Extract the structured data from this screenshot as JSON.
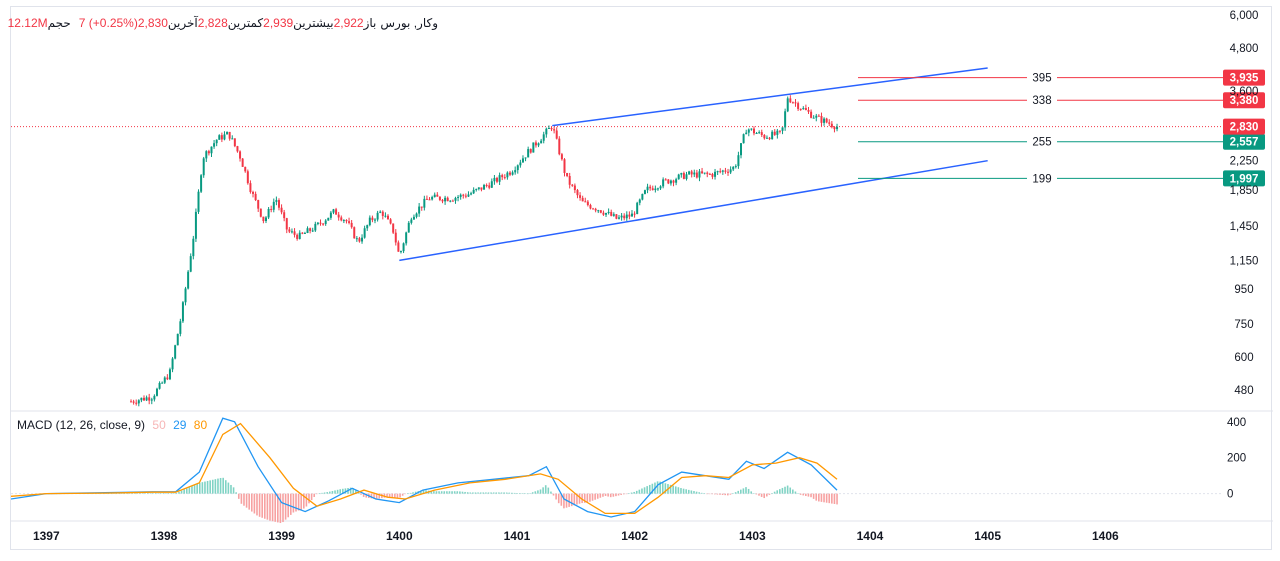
{
  "header": {
    "symbol": "وکار, بورس",
    "open_label": "باز",
    "open_value": "2,922",
    "high_label": "بیشترین",
    "high_value": "2,939",
    "low_label": "کمترین",
    "low_value": "2,828",
    "close_label": "آخرین",
    "close_value": "2,830",
    "change": "7  (+0.25%)",
    "volume_label": "حجم",
    "volume_value": "12.12M"
  },
  "macd": {
    "label": "MACD (12, 26, close, 9)",
    "p1": "50",
    "p2": "29",
    "p3": "80",
    "colors": {
      "hist_pos": "#26a69a",
      "hist_neg": "#ef5350",
      "macd": "#2196f3",
      "signal": "#ff9800"
    }
  },
  "colors": {
    "up": "#089981",
    "down": "#f23645",
    "channel": "#2962ff",
    "grid": "#f0f3fa",
    "axis_text": "#131722"
  },
  "chart_data": [
    {
      "type": "candlestick",
      "title": "وکار, بورس",
      "scale": "log",
      "ylim": [
        420,
        6000
      ],
      "y_ticks": [
        "6,000",
        "4,800",
        "3,600",
        "2,250",
        "1,850",
        "1,450",
        "1,150",
        "950",
        "750",
        "600",
        "480"
      ],
      "y_tick_values": [
        6000,
        4800,
        3600,
        2250,
        1850,
        1450,
        1150,
        950,
        750,
        600,
        480
      ],
      "x_ticks": [
        "1397",
        "1398",
        "1399",
        "1400",
        "1401",
        "1402",
        "1403",
        "1404",
        "1405",
        "1406"
      ],
      "xlim": [
        1396.7,
        1407.0
      ],
      "price_path": [
        [
          1397.72,
          445
        ],
        [
          1397.9,
          460
        ],
        [
          1398.05,
          540
        ],
        [
          1398.15,
          800
        ],
        [
          1398.25,
          1350
        ],
        [
          1398.33,
          2300
        ],
        [
          1398.45,
          2600
        ],
        [
          1398.55,
          2700
        ],
        [
          1398.65,
          2300
        ],
        [
          1398.75,
          1800
        ],
        [
          1398.85,
          1500
        ],
        [
          1398.95,
          1750
        ],
        [
          1399.05,
          1400
        ],
        [
          1399.15,
          1350
        ],
        [
          1399.3,
          1450
        ],
        [
          1399.45,
          1600
        ],
        [
          1399.55,
          1500
        ],
        [
          1399.65,
          1300
        ],
        [
          1399.75,
          1500
        ],
        [
          1399.85,
          1600
        ],
        [
          1399.95,
          1400
        ],
        [
          1400.0,
          1180
        ],
        [
          1400.1,
          1550
        ],
        [
          1400.25,
          1750
        ],
        [
          1400.45,
          1750
        ],
        [
          1400.6,
          1800
        ],
        [
          1400.8,
          1950
        ],
        [
          1400.95,
          2100
        ],
        [
          1401.1,
          2400
        ],
        [
          1401.3,
          2850
        ],
        [
          1401.42,
          2000
        ],
        [
          1401.55,
          1700
        ],
        [
          1401.7,
          1620
        ],
        [
          1401.85,
          1520
        ],
        [
          1401.98,
          1560
        ],
        [
          1402.1,
          1850
        ],
        [
          1402.25,
          1950
        ],
        [
          1402.45,
          2050
        ],
        [
          1402.65,
          2050
        ],
        [
          1402.85,
          2150
        ],
        [
          1402.95,
          2800
        ],
        [
          1403.1,
          2650
        ],
        [
          1403.25,
          2700
        ],
        [
          1403.3,
          3450
        ],
        [
          1403.45,
          3150
        ],
        [
          1403.55,
          3000
        ],
        [
          1403.72,
          2830
        ]
      ],
      "last_price": 2830,
      "last_price_label": "2,830",
      "channel_upper": [
        [
          1401.3,
          2850
        ],
        [
          1405.0,
          4200
        ]
      ],
      "channel_lower": [
        [
          1400.0,
          1150
        ],
        [
          1405.0,
          2250
        ]
      ],
      "levels": [
        {
          "price": 3935,
          "label": "3,935",
          "count": "395",
          "color": "#f23645"
        },
        {
          "price": 3380,
          "label": "3,380",
          "count": "338",
          "color": "#f23645"
        },
        {
          "price": 2557,
          "label": "2,557",
          "count": "255",
          "color": "#089981"
        },
        {
          "price": 1997,
          "label": "1,997",
          "count": "199",
          "color": "#089981"
        }
      ]
    },
    {
      "type": "line",
      "title": "MACD (12, 26, close, 9)",
      "ylim": [
        -130,
        460
      ],
      "y_ticks": [
        "400",
        "200",
        "0"
      ],
      "y_tick_values": [
        400,
        200,
        0
      ],
      "macd": [
        [
          1396.7,
          -30
        ],
        [
          1397.0,
          0
        ],
        [
          1397.5,
          5
        ],
        [
          1397.9,
          10
        ],
        [
          1398.1,
          10
        ],
        [
          1398.3,
          120
        ],
        [
          1398.5,
          420
        ],
        [
          1398.6,
          400
        ],
        [
          1398.8,
          150
        ],
        [
          1399.0,
          -50
        ],
        [
          1399.2,
          -100
        ],
        [
          1399.4,
          -40
        ],
        [
          1399.6,
          30
        ],
        [
          1399.8,
          -30
        ],
        [
          1400.0,
          -50
        ],
        [
          1400.2,
          20
        ],
        [
          1400.5,
          60
        ],
        [
          1400.8,
          80
        ],
        [
          1401.1,
          100
        ],
        [
          1401.25,
          150
        ],
        [
          1401.4,
          -30
        ],
        [
          1401.6,
          -100
        ],
        [
          1401.8,
          -130
        ],
        [
          1402.0,
          -100
        ],
        [
          1402.2,
          50
        ],
        [
          1402.4,
          120
        ],
        [
          1402.6,
          100
        ],
        [
          1402.8,
          80
        ],
        [
          1402.95,
          180
        ],
        [
          1403.1,
          140
        ],
        [
          1403.3,
          230
        ],
        [
          1403.5,
          160
        ],
        [
          1403.72,
          20
        ]
      ],
      "signal": [
        [
          1396.7,
          -15
        ],
        [
          1397.0,
          0
        ],
        [
          1397.5,
          3
        ],
        [
          1397.9,
          8
        ],
        [
          1398.1,
          8
        ],
        [
          1398.3,
          60
        ],
        [
          1398.5,
          330
        ],
        [
          1398.65,
          390
        ],
        [
          1398.9,
          200
        ],
        [
          1399.1,
          30
        ],
        [
          1399.3,
          -70
        ],
        [
          1399.5,
          -30
        ],
        [
          1399.7,
          20
        ],
        [
          1399.9,
          -20
        ],
        [
          1400.05,
          -30
        ],
        [
          1400.3,
          20
        ],
        [
          1400.6,
          60
        ],
        [
          1400.9,
          80
        ],
        [
          1401.2,
          110
        ],
        [
          1401.35,
          80
        ],
        [
          1401.55,
          -30
        ],
        [
          1401.75,
          -110
        ],
        [
          1402.0,
          -110
        ],
        [
          1402.2,
          -20
        ],
        [
          1402.4,
          90
        ],
        [
          1402.6,
          100
        ],
        [
          1402.8,
          90
        ],
        [
          1403.0,
          160
        ],
        [
          1403.2,
          170
        ],
        [
          1403.4,
          200
        ],
        [
          1403.55,
          170
        ],
        [
          1403.72,
          80
        ]
      ]
    }
  ]
}
